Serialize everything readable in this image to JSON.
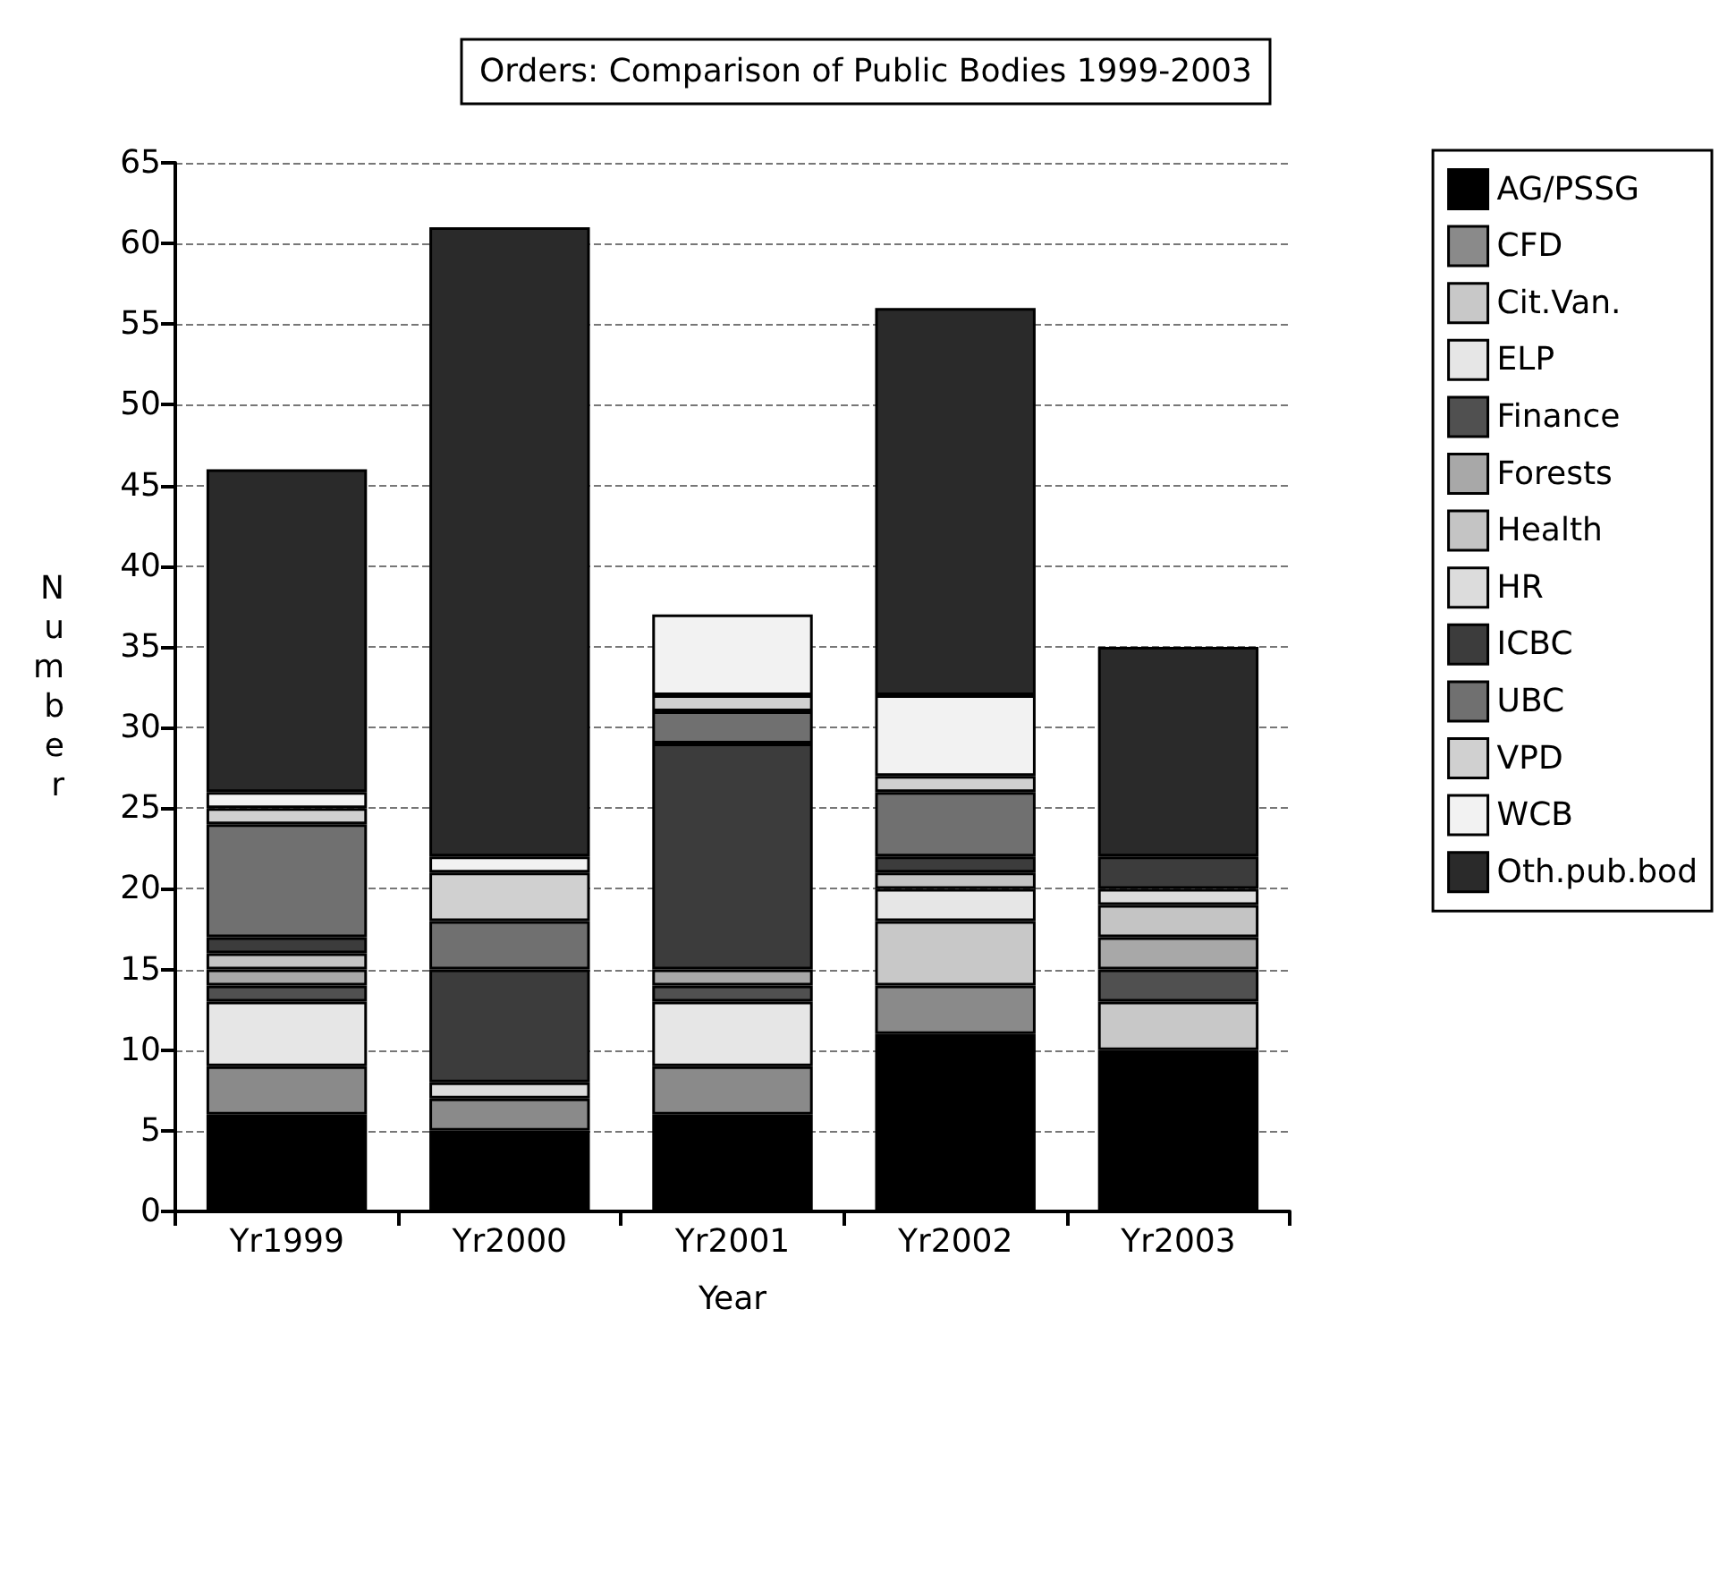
{
  "chart_data": {
    "type": "bar",
    "title": "Orders: Comparison of Public Bodies 1999-2003",
    "xlabel": "Year",
    "ylabel": "Number",
    "categories": [
      "Yr1999",
      "Yr2000",
      "Yr2001",
      "Yr2002",
      "Yr2003"
    ],
    "stacked": true,
    "ylim": [
      0,
      65
    ],
    "yticks": [
      0,
      5,
      10,
      15,
      20,
      25,
      30,
      35,
      40,
      45,
      50,
      55,
      60,
      65
    ],
    "grid": "y",
    "legend": "right",
    "series": [
      {
        "name": "AG/PSSG",
        "color": "#000000",
        "values": [
          6,
          5,
          6,
          11,
          10
        ]
      },
      {
        "name": "CFD",
        "color": "#8a8a8a",
        "values": [
          3,
          2,
          3,
          3,
          0
        ]
      },
      {
        "name": "Cit.Van.",
        "color": "#c8c8c8",
        "values": [
          0,
          0,
          0,
          4,
          3
        ]
      },
      {
        "name": "ELP",
        "color": "#e6e6e6",
        "values": [
          4,
          0,
          4,
          2,
          0
        ]
      },
      {
        "name": "Finance",
        "color": "#505050",
        "values": [
          1,
          0,
          1,
          0,
          2
        ]
      },
      {
        "name": "Forests",
        "color": "#a8a8a8",
        "values": [
          1,
          0,
          1,
          0,
          2
        ]
      },
      {
        "name": "Health",
        "color": "#c4c4c4",
        "values": [
          1,
          0,
          0,
          1,
          2
        ]
      },
      {
        "name": "HR",
        "color": "#dcdcdc",
        "values": [
          0,
          1,
          0,
          0,
          1
        ]
      },
      {
        "name": "ICBC",
        "color": "#3c3c3c",
        "values": [
          1,
          7,
          14,
          1,
          2
        ]
      },
      {
        "name": "UBC",
        "color": "#707070",
        "values": [
          7,
          3,
          2,
          4,
          0
        ]
      },
      {
        "name": "VPD",
        "color": "#d0d0d0",
        "values": [
          1,
          3,
          1,
          1,
          0
        ]
      },
      {
        "name": "WCB",
        "color": "#f2f2f2",
        "values": [
          1,
          1,
          5,
          5,
          0
        ]
      },
      {
        "name": "Oth.pub.bod",
        "color": "#2a2a2a",
        "values": [
          20,
          39,
          0,
          24,
          13
        ]
      }
    ]
  }
}
